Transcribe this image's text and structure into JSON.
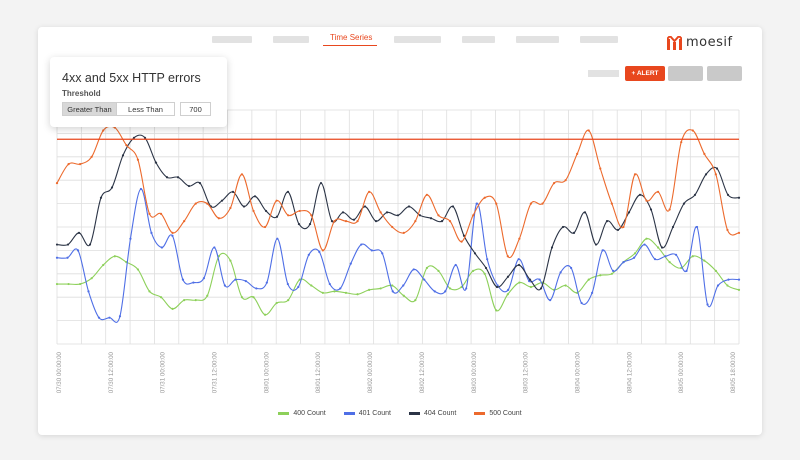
{
  "nav": {
    "items": [
      "",
      "",
      "Time Series",
      "",
      "",
      "",
      ""
    ],
    "active_label": "Time Series"
  },
  "logo": {
    "text": "moesif"
  },
  "toolbar": {
    "alert_label": "+ ALERT"
  },
  "alert_panel": {
    "title": "4xx and 5xx HTTP errors",
    "subtitle": "Threshold",
    "greater_than_label": "Greater Than",
    "less_than_label": "Less Than",
    "threshold_value": "700",
    "selected": "Greater Than"
  },
  "colors": {
    "accent": "#e8471e",
    "s400": "#8dd05a",
    "s401": "#4f6fe6",
    "s404": "#2b3446",
    "s500": "#ec6a2d",
    "threshold": "#e8471e"
  },
  "chart_data": {
    "type": "line",
    "x_ticks": [
      "07/30 00:00:00",
      "07/30 12:00:00",
      "07/31 00:00:00",
      "07/31 12:00:00",
      "08/01 00:00:00",
      "08/01 12:00:00",
      "08/02 00:00:00",
      "08/02 12:00:00",
      "08/03 00:00:00",
      "08/03 12:00:00",
      "08/04 00:00:00",
      "08/04 12:00:00",
      "08/05 00:00:00",
      "08/05 18:00:00"
    ],
    "threshold": 700,
    "ylim": [
      0,
      800
    ],
    "grid": true,
    "legend_position": "bottom",
    "series": [
      {
        "name": "400 Count",
        "color": "#8dd05a",
        "values": [
          205,
          205,
          205,
          225,
          270,
          300,
          280,
          255,
          180,
          160,
          120,
          150,
          150,
          165,
          300,
          285,
          160,
          160,
          100,
          140,
          150,
          220,
          200,
          175,
          180,
          175,
          170,
          185,
          190,
          200,
          165,
          150,
          260,
          250,
          190,
          195,
          250,
          240,
          115,
          170,
          210,
          195,
          210,
          185,
          200,
          175,
          220,
          235,
          240,
          280,
          310,
          360,
          330,
          280,
          260,
          300,
          285,
          250,
          200,
          185
        ]
      },
      {
        "name": "401 Count",
        "color": "#4f6fe6",
        "values": [
          295,
          295,
          320,
          180,
          90,
          90,
          95,
          360,
          530,
          380,
          330,
          370,
          220,
          210,
          225,
          330,
          200,
          220,
          215,
          190,
          210,
          360,
          205,
          195,
          305,
          315,
          205,
          190,
          275,
          340,
          320,
          310,
          180,
          200,
          255,
          220,
          180,
          180,
          270,
          190,
          480,
          290,
          200,
          185,
          290,
          215,
          220,
          150,
          245,
          260,
          140,
          175,
          320,
          250,
          280,
          295,
          340,
          290,
          300,
          305,
          250,
          400,
          135,
          200,
          220,
          220
        ]
      },
      {
        "name": "404 Count",
        "color": "#2b3446",
        "values": [
          340,
          340,
          380,
          340,
          500,
          535,
          645,
          705,
          705,
          620,
          570,
          570,
          540,
          550,
          470,
          490,
          520,
          470,
          505,
          455,
          435,
          520,
          410,
          410,
          550,
          420,
          450,
          425,
          470,
          420,
          450,
          440,
          470,
          440,
          430,
          420,
          470,
          370,
          310,
          260,
          195,
          230,
          270,
          220,
          190,
          330,
          400,
          380,
          450,
          340,
          420,
          390,
          450,
          510,
          460,
          330,
          400,
          480,
          510,
          580,
          600,
          510,
          500
        ]
      },
      {
        "name": "500 Count",
        "color": "#ec6a2d",
        "values": [
          550,
          615,
          615,
          640,
          730,
          740,
          680,
          630,
          445,
          445,
          380,
          420,
          480,
          480,
          430,
          465,
          580,
          455,
          400,
          490,
          440,
          455,
          440,
          320,
          420,
          420,
          420,
          520,
          450,
          400,
          380,
          420,
          510,
          440,
          420,
          350,
          440,
          500,
          480,
          300,
          360,
          480,
          480,
          550,
          560,
          650,
          730,
          600,
          480,
          400,
          580,
          490,
          520,
          460,
          690,
          730,
          650,
          580,
          390,
          380
        ]
      }
    ]
  }
}
